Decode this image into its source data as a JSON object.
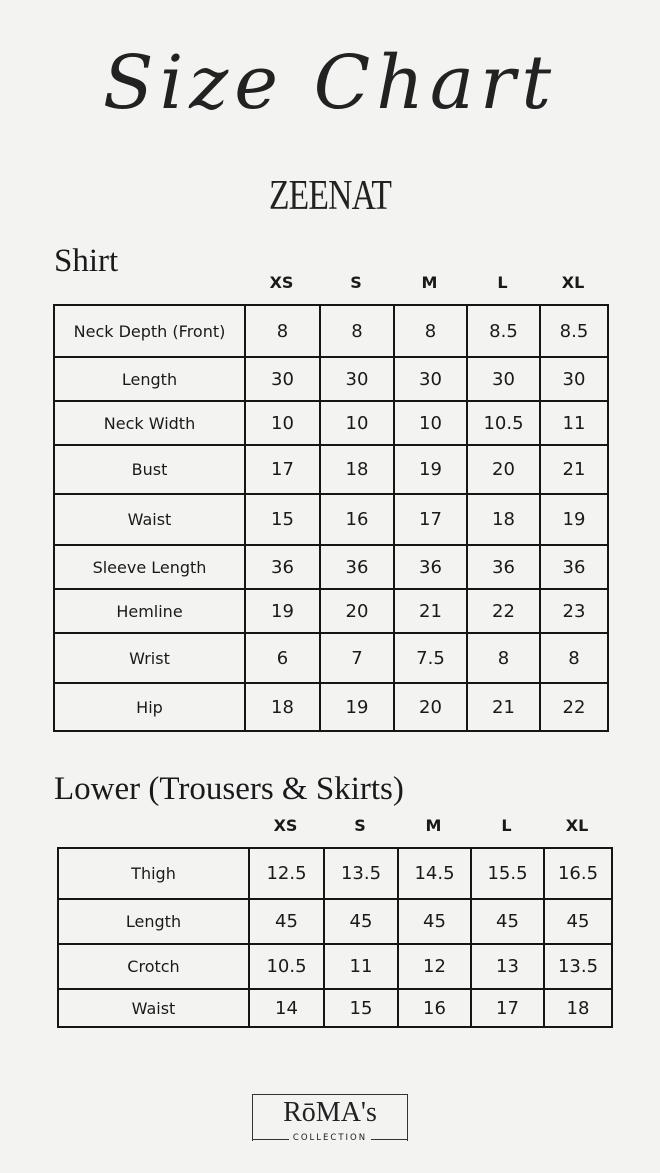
{
  "title": "Size Chart",
  "brand": "ZEENAT",
  "sizes": [
    "XS",
    "S",
    "M",
    "L",
    "XL"
  ],
  "shirt": {
    "heading": "Shirt",
    "rows": [
      {
        "label": "Neck Depth (Front)",
        "values": [
          "8",
          "8",
          "8",
          "8.5",
          "8.5"
        ]
      },
      {
        "label": "Length",
        "values": [
          "30",
          "30",
          "30",
          "30",
          "30"
        ]
      },
      {
        "label": "Neck Width",
        "values": [
          "10",
          "10",
          "10",
          "10.5",
          "11"
        ]
      },
      {
        "label": "Bust",
        "values": [
          "17",
          "18",
          "19",
          "20",
          "21"
        ]
      },
      {
        "label": "Waist",
        "values": [
          "15",
          "16",
          "17",
          "18",
          "19"
        ]
      },
      {
        "label": "Sleeve Length",
        "values": [
          "36",
          "36",
          "36",
          "36",
          "36"
        ]
      },
      {
        "label": "Hemline",
        "values": [
          "19",
          "20",
          "21",
          "22",
          "23"
        ]
      },
      {
        "label": "Wrist",
        "values": [
          "6",
          "7",
          "7.5",
          "8",
          "8"
        ]
      },
      {
        "label": "Hip",
        "values": [
          "18",
          "19",
          "20",
          "21",
          "22"
        ]
      }
    ]
  },
  "lower": {
    "heading": "Lower (Trousers & Skirts)",
    "rows": [
      {
        "label": "Thigh",
        "values": [
          "12.5",
          "13.5",
          "14.5",
          "15.5",
          "16.5"
        ]
      },
      {
        "label": "Length",
        "values": [
          "45",
          "45",
          "45",
          "45",
          "45"
        ]
      },
      {
        "label": "Crotch",
        "values": [
          "10.5",
          "11",
          "12",
          "13",
          "13.5"
        ]
      },
      {
        "label": "Waist",
        "values": [
          "14",
          "15",
          "16",
          "17",
          "18"
        ]
      }
    ]
  },
  "footer_logo": {
    "name": "RōMA's",
    "sub": "COLLECTION"
  }
}
